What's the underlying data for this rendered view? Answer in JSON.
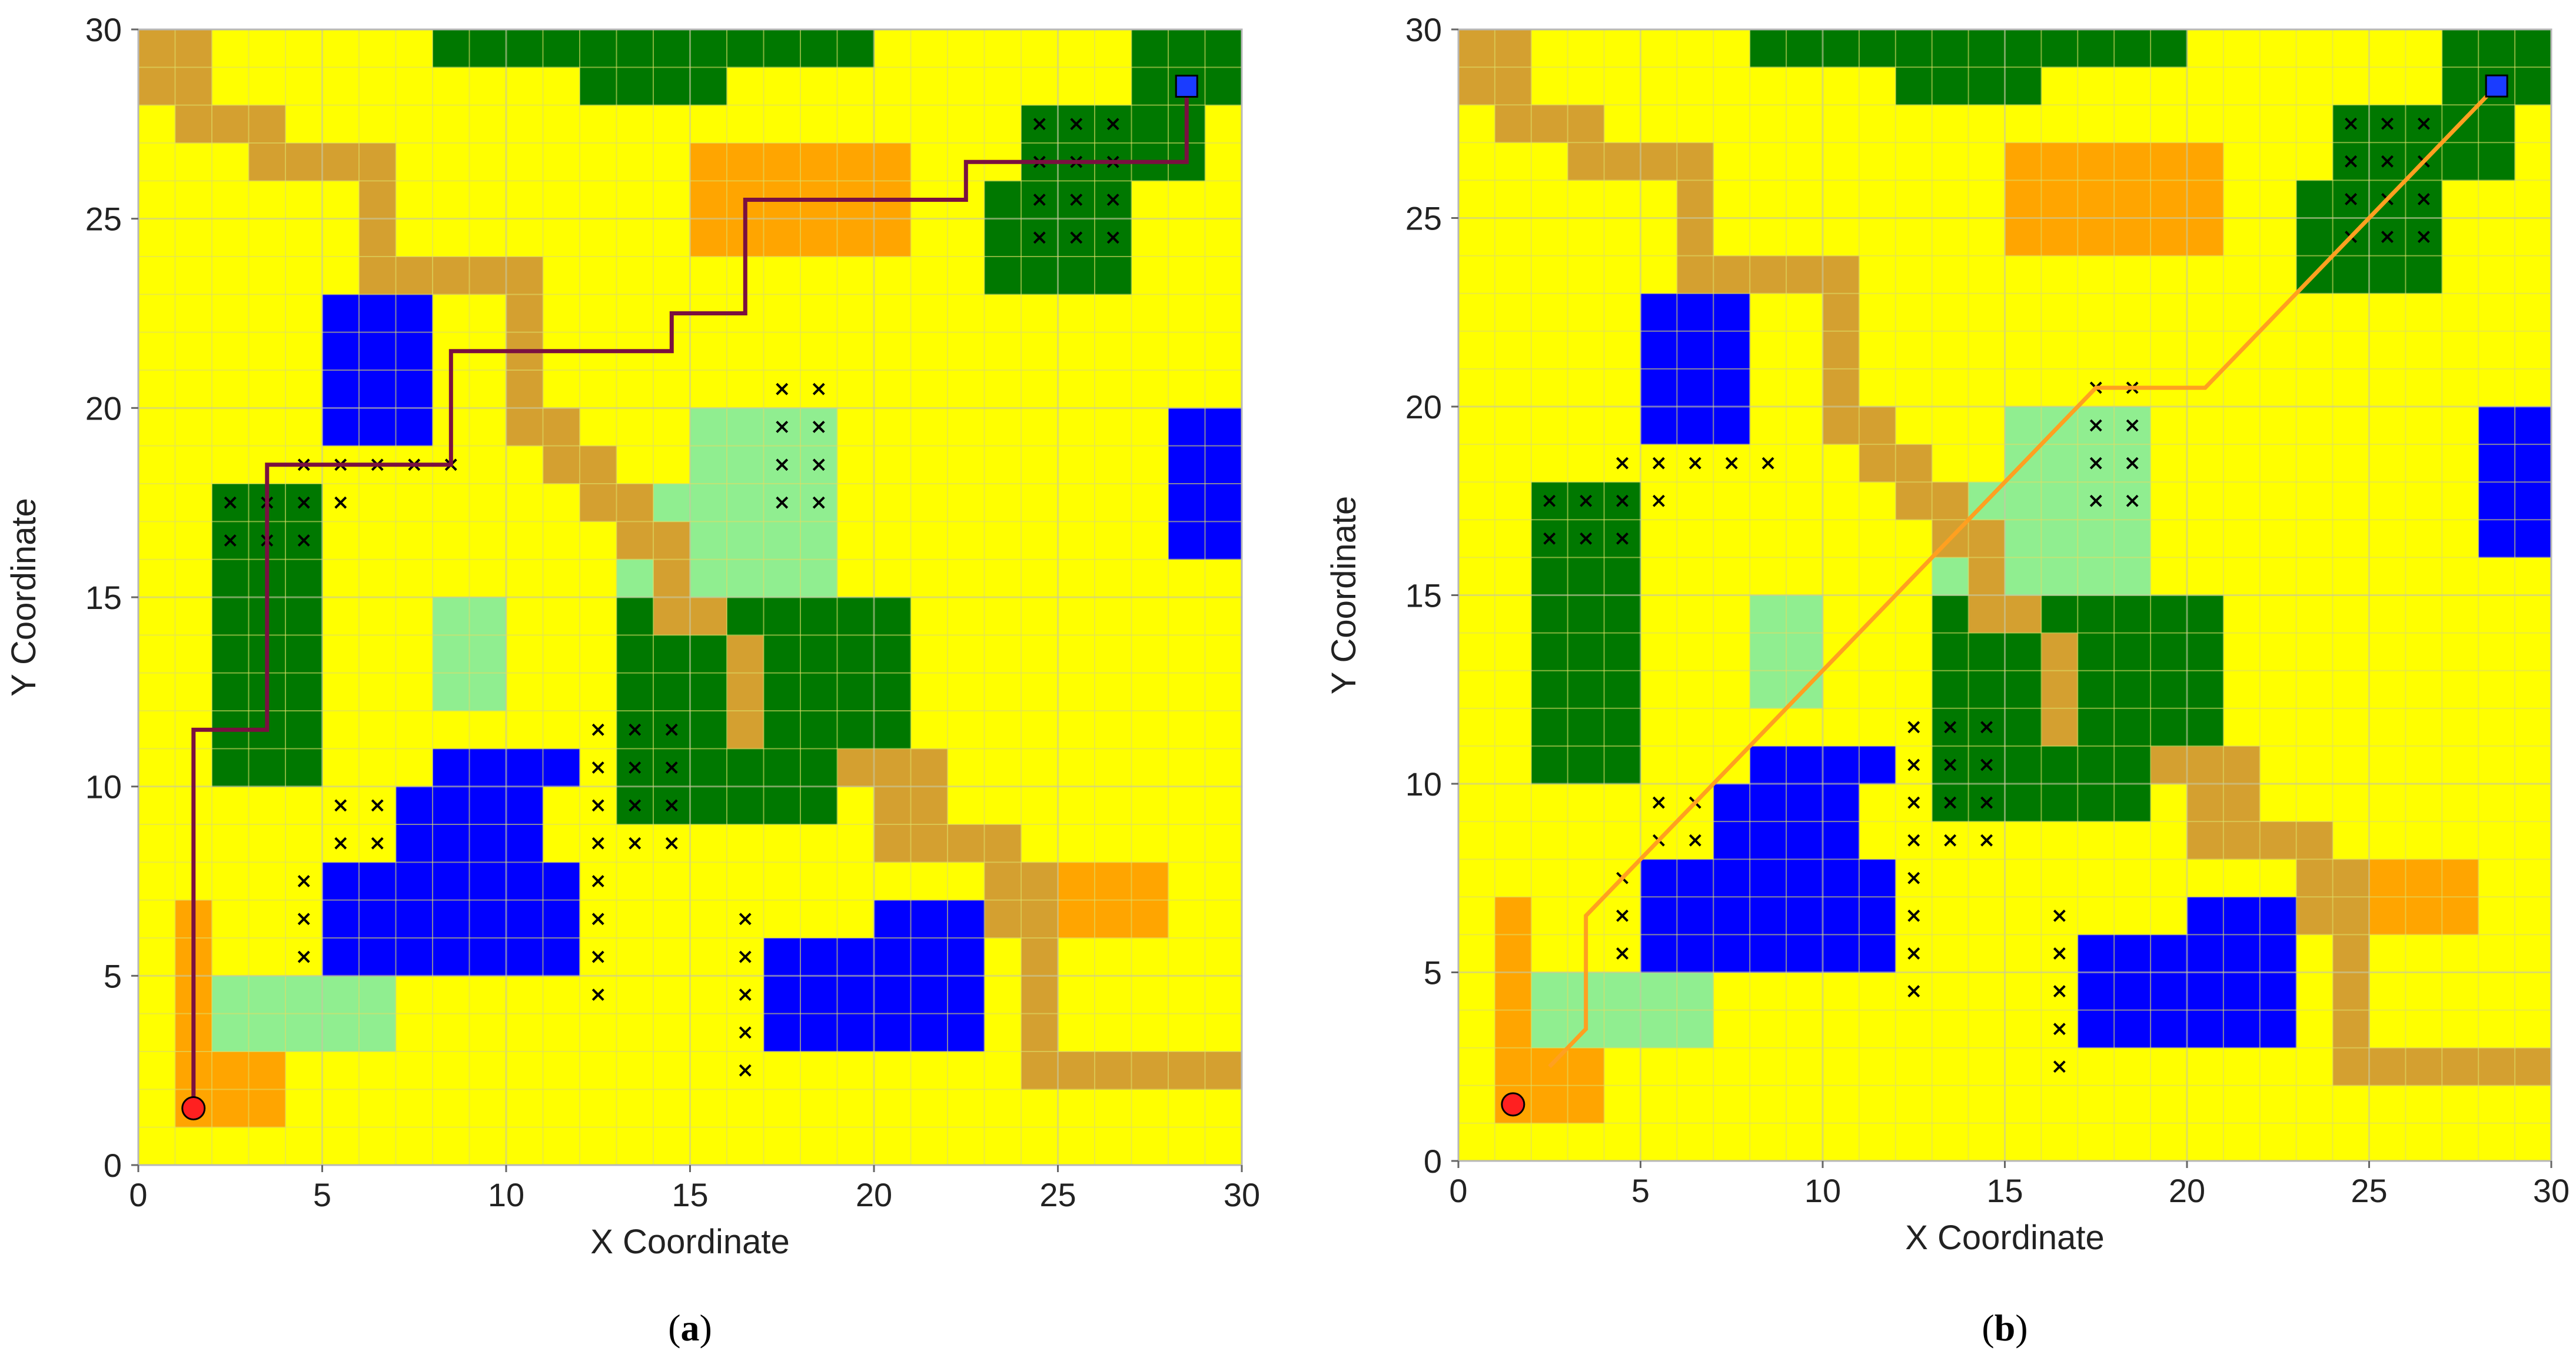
{
  "colors": {
    "background": "#ffff00",
    "forest": "#007800",
    "light_green": "#90ee90",
    "water": "#0000ff",
    "orange": "#ffa500",
    "road": "#d4a030",
    "grid": "#e3e35a",
    "obstacle_mark": "#000000",
    "start": "#ff2020",
    "goal": "#1a3cff",
    "path_a": "#7a1040",
    "path_b": "#ffa020"
  },
  "chart_data": [
    {
      "type": "grid-map",
      "panel_label": {
        "open": "(",
        "letter": "a",
        "close": ")"
      },
      "xlabel": "X Coordinate",
      "ylabel": "Y Coordinate",
      "xlim": [
        0,
        30
      ],
      "ylim": [
        0,
        30
      ],
      "xticks": [
        "0",
        "5",
        "10",
        "15",
        "20",
        "25",
        "30"
      ],
      "yticks": [
        "0",
        "5",
        "10",
        "15",
        "20",
        "25",
        "30"
      ],
      "path_color": "#7a1040",
      "path": [
        [
          1.5,
          1.5
        ],
        [
          1.5,
          11.5
        ],
        [
          3.5,
          11.5
        ],
        [
          3.5,
          18.5
        ],
        [
          8.5,
          18.5
        ],
        [
          8.5,
          21.5
        ],
        [
          14.5,
          21.5
        ],
        [
          14.5,
          22.5
        ],
        [
          16.5,
          22.5
        ],
        [
          16.5,
          25.5
        ],
        [
          22.5,
          25.5
        ],
        [
          22.5,
          26.5
        ],
        [
          28.5,
          26.5
        ],
        [
          28.5,
          28.5
        ]
      ]
    },
    {
      "type": "grid-map",
      "panel_label": {
        "open": "(",
        "letter": "b",
        "close": ")"
      },
      "xlabel": "X Coordinate",
      "ylabel": "Y Coordinate",
      "xlim": [
        0,
        30
      ],
      "ylim": [
        0,
        30
      ],
      "xticks": [
        "0",
        "5",
        "10",
        "15",
        "20",
        "25",
        "30"
      ],
      "yticks": [
        "0",
        "5",
        "10",
        "15",
        "20",
        "25",
        "30"
      ],
      "path_color": "#ffa020",
      "path": [
        [
          2.5,
          2.5
        ],
        [
          3.5,
          3.5
        ],
        [
          3.5,
          6.5
        ],
        [
          17.5,
          20.5
        ],
        [
          20.5,
          20.5
        ],
        [
          28.5,
          28.5
        ]
      ]
    }
  ],
  "map": {
    "start": [
      1.5,
      1.5
    ],
    "goal": [
      28.5,
      28.5
    ],
    "rects": [
      {
        "type": "road",
        "x": 0,
        "y": 28,
        "w": 2,
        "h": 2
      },
      {
        "type": "road",
        "x": 1,
        "y": 27,
        "w": 3,
        "h": 1
      },
      {
        "type": "road",
        "x": 3,
        "y": 26,
        "w": 4,
        "h": 1
      },
      {
        "type": "road",
        "x": 6,
        "y": 24,
        "w": 1,
        "h": 2
      },
      {
        "type": "road",
        "x": 6,
        "y": 23,
        "w": 5,
        "h": 1
      },
      {
        "type": "road",
        "x": 10,
        "y": 20,
        "w": 1,
        "h": 3
      },
      {
        "type": "road",
        "x": 10,
        "y": 19,
        "w": 2,
        "h": 1
      },
      {
        "type": "road",
        "x": 11,
        "y": 18,
        "w": 2,
        "h": 1
      },
      {
        "type": "road",
        "x": 12,
        "y": 17,
        "w": 2,
        "h": 1
      },
      {
        "type": "road",
        "x": 13,
        "y": 16,
        "w": 2,
        "h": 1
      },
      {
        "type": "road",
        "x": 14,
        "y": 15,
        "w": 2,
        "h": 1
      },
      {
        "type": "road",
        "x": 14,
        "y": 14,
        "w": 3,
        "h": 1
      },
      {
        "type": "road",
        "x": 16,
        "y": 12,
        "w": 1,
        "h": 2
      },
      {
        "type": "road",
        "x": 16,
        "y": 11,
        "w": 2,
        "h": 1
      },
      {
        "type": "road",
        "x": 17,
        "y": 10,
        "w": 5,
        "h": 1
      },
      {
        "type": "road",
        "x": 20,
        "y": 9,
        "w": 2,
        "h": 1
      },
      {
        "type": "road",
        "x": 20,
        "y": 8,
        "w": 4,
        "h": 1
      },
      {
        "type": "road",
        "x": 23,
        "y": 6,
        "w": 2,
        "h": 2
      },
      {
        "type": "road",
        "x": 24,
        "y": 3,
        "w": 1,
        "h": 3
      },
      {
        "type": "road",
        "x": 24,
        "y": 2,
        "w": 6,
        "h": 1
      },
      {
        "type": "forest",
        "x": 8,
        "y": 29,
        "w": 12,
        "h": 1
      },
      {
        "type": "forest",
        "x": 12,
        "y": 28,
        "w": 4,
        "h": 1
      },
      {
        "type": "forest",
        "x": 27,
        "y": 28,
        "w": 3,
        "h": 2
      },
      {
        "type": "forest",
        "x": 24,
        "y": 26,
        "w": 5,
        "h": 2
      },
      {
        "type": "forest",
        "x": 23,
        "y": 23,
        "w": 4,
        "h": 3
      },
      {
        "type": "forest",
        "x": 2,
        "y": 10,
        "w": 3,
        "h": 8
      },
      {
        "type": "forest",
        "x": 13,
        "y": 14,
        "w": 1,
        "h": 1
      },
      {
        "type": "forest",
        "x": 13,
        "y": 9,
        "w": 3,
        "h": 5
      },
      {
        "type": "forest",
        "x": 16,
        "y": 9,
        "w": 3,
        "h": 2
      },
      {
        "type": "forest",
        "x": 17,
        "y": 11,
        "w": 1,
        "h": 4
      },
      {
        "type": "forest",
        "x": 18,
        "y": 11,
        "w": 3,
        "h": 4
      },
      {
        "type": "forest",
        "x": 16,
        "y": 14,
        "w": 1,
        "h": 1
      },
      {
        "type": "orange",
        "x": 15,
        "y": 24,
        "w": 6,
        "h": 3
      },
      {
        "type": "orange",
        "x": 25,
        "y": 6,
        "w": 3,
        "h": 2
      },
      {
        "type": "orange",
        "x": 1,
        "y": 1,
        "w": 1,
        "h": 6
      },
      {
        "type": "orange",
        "x": 2,
        "y": 1,
        "w": 2,
        "h": 2
      },
      {
        "type": "light_green",
        "x": 15,
        "y": 15,
        "w": 4,
        "h": 5
      },
      {
        "type": "light_green",
        "x": 14,
        "y": 17,
        "w": 1,
        "h": 1
      },
      {
        "type": "light_green",
        "x": 13,
        "y": 15,
        "w": 1,
        "h": 1
      },
      {
        "type": "light_green",
        "x": 8,
        "y": 12,
        "w": 2,
        "h": 3
      },
      {
        "type": "light_green",
        "x": 2,
        "y": 3,
        "w": 5,
        "h": 2
      },
      {
        "type": "water",
        "x": 5,
        "y": 19,
        "w": 3,
        "h": 4
      },
      {
        "type": "water",
        "x": 28,
        "y": 16,
        "w": 2,
        "h": 4
      },
      {
        "type": "water",
        "x": 8,
        "y": 10,
        "w": 4,
        "h": 1
      },
      {
        "type": "water",
        "x": 7,
        "y": 5,
        "w": 4,
        "h": 5
      },
      {
        "type": "water",
        "x": 5,
        "y": 5,
        "w": 2,
        "h": 3
      },
      {
        "type": "water",
        "x": 11,
        "y": 5,
        "w": 1,
        "h": 3
      },
      {
        "type": "water",
        "x": 17,
        "y": 3,
        "w": 6,
        "h": 3
      },
      {
        "type": "water",
        "x": 20,
        "y": 6,
        "w": 3,
        "h": 1
      }
    ],
    "obstacles": [
      [
        24.5,
        27.5
      ],
      [
        25.5,
        27.5
      ],
      [
        26.5,
        27.5
      ],
      [
        24.5,
        26.5
      ],
      [
        25.5,
        26.5
      ],
      [
        26.5,
        26.5
      ],
      [
        24.5,
        25.5
      ],
      [
        25.5,
        25.5
      ],
      [
        26.5,
        25.5
      ],
      [
        24.5,
        24.5
      ],
      [
        25.5,
        24.5
      ],
      [
        26.5,
        24.5
      ],
      [
        17.5,
        20.5
      ],
      [
        18.5,
        20.5
      ],
      [
        17.5,
        19.5
      ],
      [
        18.5,
        19.5
      ],
      [
        17.5,
        18.5
      ],
      [
        18.5,
        18.5
      ],
      [
        17.5,
        17.5
      ],
      [
        18.5,
        17.5
      ],
      [
        4.5,
        18.5
      ],
      [
        5.5,
        18.5
      ],
      [
        6.5,
        18.5
      ],
      [
        7.5,
        18.5
      ],
      [
        8.5,
        18.5
      ],
      [
        5.5,
        17.5
      ],
      [
        2.5,
        17.5
      ],
      [
        3.5,
        17.5
      ],
      [
        4.5,
        17.5
      ],
      [
        2.5,
        16.5
      ],
      [
        3.5,
        16.5
      ],
      [
        4.5,
        16.5
      ],
      [
        12.5,
        11.5
      ],
      [
        13.5,
        11.5
      ],
      [
        14.5,
        11.5
      ],
      [
        12.5,
        10.5
      ],
      [
        13.5,
        10.5
      ],
      [
        14.5,
        10.5
      ],
      [
        12.5,
        9.5
      ],
      [
        13.5,
        9.5
      ],
      [
        14.5,
        9.5
      ],
      [
        12.5,
        8.5
      ],
      [
        13.5,
        8.5
      ],
      [
        14.5,
        8.5
      ],
      [
        12.5,
        7.5
      ],
      [
        12.5,
        6.5
      ],
      [
        12.5,
        5.5
      ],
      [
        12.5,
        4.5
      ],
      [
        5.5,
        9.5
      ],
      [
        6.5,
        9.5
      ],
      [
        5.5,
        8.5
      ],
      [
        6.5,
        8.5
      ],
      [
        4.5,
        7.5
      ],
      [
        4.5,
        6.5
      ],
      [
        4.5,
        5.5
      ],
      [
        16.5,
        6.5
      ],
      [
        16.5,
        5.5
      ],
      [
        16.5,
        4.5
      ],
      [
        16.5,
        3.5
      ],
      [
        16.5,
        2.5
      ]
    ]
  }
}
